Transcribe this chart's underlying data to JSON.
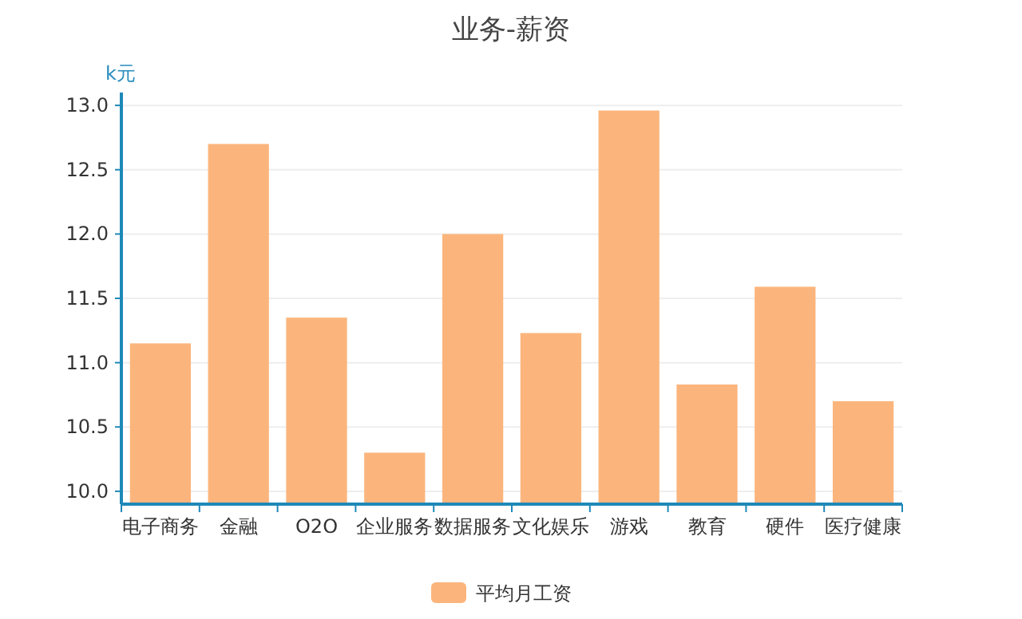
{
  "chart_data": {
    "type": "bar",
    "title": "业务-薪资",
    "ylabel": "k元",
    "categories": [
      "电子商务",
      "金融",
      "O2O",
      "企业服务",
      "数据服务",
      "文化娱乐",
      "游戏",
      "教育",
      "硬件",
      "医疗健康"
    ],
    "series": [
      {
        "name": "平均月工资",
        "color": "#fbb57c",
        "values": [
          11.15,
          12.7,
          11.35,
          10.3,
          12.0,
          11.23,
          12.96,
          10.83,
          11.59,
          10.7
        ]
      }
    ],
    "ylim": [
      9.9,
      13.1
    ],
    "yticks": [
      {
        "value": 10,
        "label": "10.0"
      },
      10.5,
      {
        "value": 11,
        "label": "11.0"
      },
      11.5,
      {
        "value": 12,
        "label": "12.0"
      },
      12.5,
      {
        "value": 13,
        "label": "13.0"
      }
    ],
    "grid": "y",
    "legend": "bottom"
  }
}
